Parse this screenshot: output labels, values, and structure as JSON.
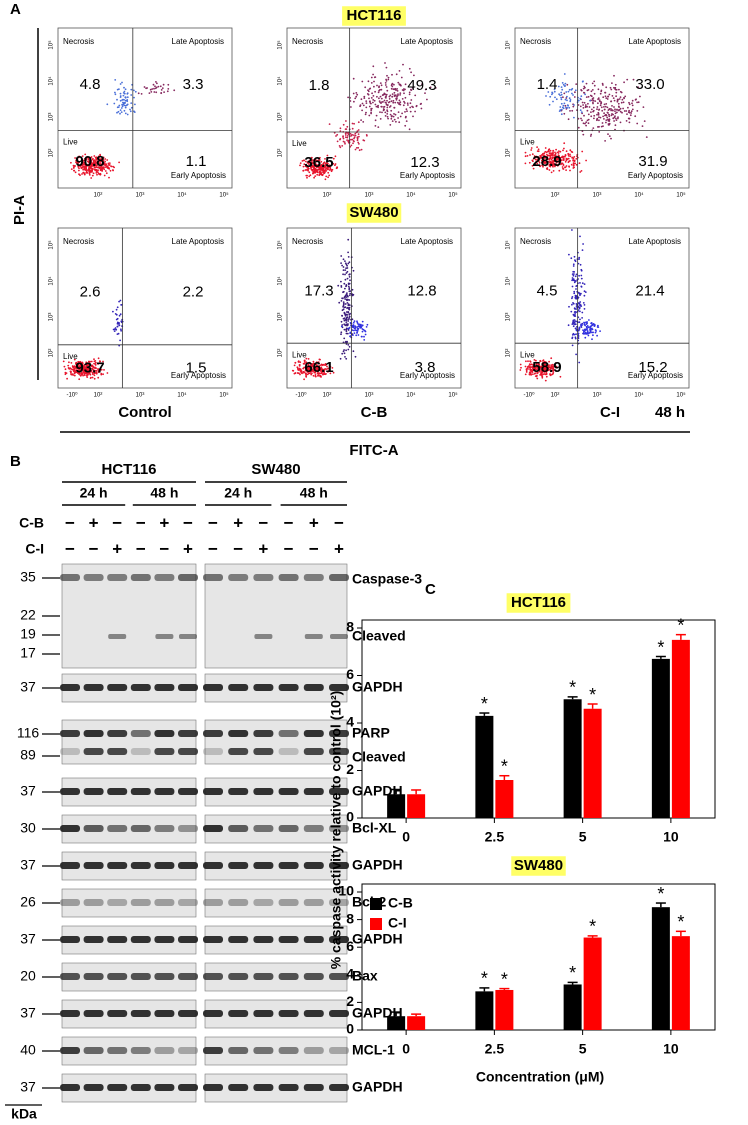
{
  "panel_a": {
    "letter": "A",
    "cell_lines": [
      "HCT116",
      "SW480"
    ],
    "y_axis_label": "PI-A",
    "x_axis_label": "FITC-A",
    "conditions": [
      "Control",
      "C-B",
      "C-I"
    ],
    "time": "48 h",
    "quadrant_labels": {
      "necrosis": "Necrosis",
      "late": "Late Apoptosis",
      "live": "Live",
      "early": "Early Apoptosis"
    },
    "axis_ticks": [
      "10²",
      "10³",
      "10⁴",
      "10⁵"
    ],
    "negative_tick": "-10⁰",
    "plots": [
      [
        {
          "necrosis": "4.8",
          "late": "3.3",
          "live": "90.8",
          "early": "1.1"
        },
        {
          "necrosis": "1.8",
          "late": "49.3",
          "live": "36.5",
          "early": "12.3"
        },
        {
          "necrosis": "1.4",
          "late": "33.0",
          "live": "28.9",
          "early": "31.9"
        }
      ],
      [
        {
          "necrosis": "2.6",
          "late": "2.2",
          "live": "93.7",
          "early": "1.5"
        },
        {
          "necrosis": "17.3",
          "late": "12.8",
          "live": "66.1",
          "early": "3.8"
        },
        {
          "necrosis": "4.5",
          "late": "21.4",
          "live": "58.9",
          "early": "15.2"
        }
      ]
    ]
  },
  "panel_b": {
    "letter": "B",
    "cell_lines": [
      "HCT116",
      "SW480"
    ],
    "times": [
      "24 h",
      "48 h"
    ],
    "treatments": [
      {
        "name": "C-B",
        "signs": [
          "−",
          "+",
          "−",
          "−",
          "+",
          "−"
        ]
      },
      {
        "name": "C-I",
        "signs": [
          "−",
          "−",
          "+",
          "−",
          "−",
          "+"
        ]
      }
    ],
    "unit": "kDa",
    "blots": [
      {
        "markers": [
          35,
          22,
          19,
          17
        ],
        "labels": [
          "Caspase-3",
          "Cleaved"
        ]
      },
      {
        "markers": [
          37
        ],
        "labels": [
          "GAPDH"
        ]
      },
      {
        "markers": [
          116,
          89
        ],
        "labels": [
          "PARP",
          "Cleaved"
        ]
      },
      {
        "markers": [
          37
        ],
        "labels": [
          "GAPDH"
        ]
      },
      {
        "markers": [
          30
        ],
        "labels": [
          "Bcl-XL"
        ]
      },
      {
        "markers": [
          37
        ],
        "labels": [
          "GAPDH"
        ]
      },
      {
        "markers": [
          26
        ],
        "labels": [
          "Bcl-2"
        ]
      },
      {
        "markers": [
          37
        ],
        "labels": [
          "GAPDH"
        ]
      },
      {
        "markers": [
          20
        ],
        "labels": [
          "Bax"
        ]
      },
      {
        "markers": [
          37
        ],
        "labels": [
          "GAPDH"
        ]
      },
      {
        "markers": [
          40
        ],
        "labels": [
          "MCL-1"
        ]
      },
      {
        "markers": [
          37
        ],
        "labels": [
          "GAPDH"
        ]
      }
    ]
  },
  "panel_c": {
    "letter": "C",
    "y_axis_label": "% caspase activity relative to control (10²)",
    "x_axis_label": "Concentration (μM)",
    "charts": [
      {
        "type": "bar",
        "title": "HCT116",
        "categories": [
          "0",
          "2.5",
          "5",
          "10"
        ],
        "series": [
          {
            "name": "C-B",
            "color": "#000000",
            "values": [
              1.0,
              4.3,
              5.0,
              6.7
            ],
            "errors": [
              0.2,
              0.12,
              0.1,
              0.1
            ],
            "annotations": [
              null,
              "*",
              "*",
              "*"
            ]
          },
          {
            "name": "C-I",
            "color": "#ff0000",
            "values": [
              1.0,
              1.6,
              4.6,
              7.5
            ],
            "errors": [
              0.18,
              0.18,
              0.2,
              0.22
            ],
            "annotations": [
              null,
              "*",
              "*",
              "*"
            ]
          }
        ],
        "ylim": [
          0,
          8
        ],
        "yticks": [
          0,
          2,
          4,
          6,
          8
        ]
      },
      {
        "type": "bar",
        "title": "SW480",
        "categories": [
          "0",
          "2.5",
          "5",
          "10"
        ],
        "series": [
          {
            "name": "C-B",
            "color": "#000000",
            "values": [
              1.0,
              2.8,
              3.3,
              8.9
            ],
            "errors": [
              0.3,
              0.25,
              0.15,
              0.3
            ],
            "annotations": [
              null,
              "*",
              "*",
              "*"
            ]
          },
          {
            "name": "C-I",
            "color": "#ff0000",
            "values": [
              1.0,
              2.9,
              6.7,
              6.8
            ],
            "errors": [
              0.15,
              0.1,
              0.12,
              0.35
            ],
            "annotations": [
              null,
              "*",
              "*",
              "*"
            ]
          }
        ],
        "ylim": [
          0,
          10
        ],
        "yticks": [
          0,
          2,
          4,
          6,
          8,
          10
        ],
        "legend": "upper left"
      }
    ]
  }
}
